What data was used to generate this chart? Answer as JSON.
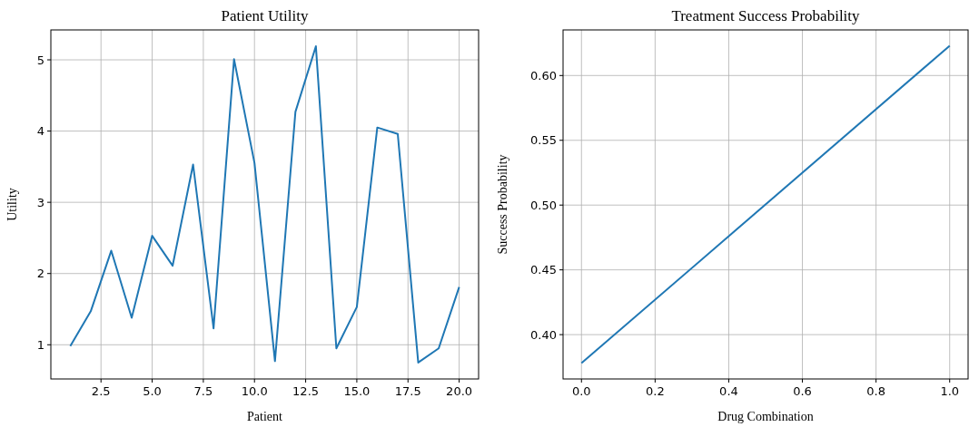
{
  "chart_data": [
    {
      "type": "line",
      "title": "Patient Utility",
      "xlabel": "Patient",
      "ylabel": "Utility",
      "x": [
        1,
        2,
        3,
        4,
        5,
        6,
        7,
        8,
        9,
        10,
        11,
        12,
        13,
        14,
        15,
        16,
        17,
        18,
        19,
        20
      ],
      "series": [
        {
          "color": "#1f77b4",
          "values": [
            0.98,
            1.47,
            2.32,
            1.38,
            2.53,
            2.11,
            3.53,
            1.23,
            5.01,
            3.55,
            0.77,
            4.27,
            5.19,
            0.95,
            1.53,
            4.05,
            3.96,
            0.75,
            0.95,
            1.81
          ]
        }
      ],
      "xlim": [
        0.05,
        20.95
      ],
      "xticks": [
        {
          "value": 2.5,
          "label": "2.5"
        },
        {
          "value": 5,
          "label": "5.0"
        },
        {
          "value": 7.5,
          "label": "7.5"
        },
        {
          "value": 10,
          "label": "10.0"
        },
        {
          "value": 12.5,
          "label": "12.5"
        },
        {
          "value": 15,
          "label": "15.0"
        },
        {
          "value": 17.5,
          "label": "17.5"
        },
        {
          "value": 20,
          "label": "20.0"
        }
      ],
      "ylim": [
        0.52,
        5.42
      ],
      "yticks": [
        1,
        2,
        3,
        4,
        5
      ],
      "grid": true
    },
    {
      "type": "line",
      "title": "Treatment Success Probability",
      "xlabel": "Drug Combination",
      "ylabel": "Success Probability",
      "x": [
        0,
        1
      ],
      "series": [
        {
          "color": "#1f77b4",
          "values": [
            0.378,
            0.623
          ]
        }
      ],
      "xlim": [
        -0.05,
        1.05
      ],
      "xticks": [
        {
          "value": 0,
          "label": "0.0"
        },
        {
          "value": 0.2,
          "label": "0.2"
        },
        {
          "value": 0.4,
          "label": "0.4"
        },
        {
          "value": 0.6,
          "label": "0.6"
        },
        {
          "value": 0.8,
          "label": "0.8"
        },
        {
          "value": 1,
          "label": "1.0"
        }
      ],
      "ylim": [
        0.3658,
        0.6352
      ],
      "yticks": [
        {
          "value": 0.4,
          "label": "0.40"
        },
        {
          "value": 0.45,
          "label": "0.45"
        },
        {
          "value": 0.5,
          "label": "0.50"
        },
        {
          "value": 0.55,
          "label": "0.55"
        },
        {
          "value": 0.6,
          "label": "0.60"
        }
      ],
      "grid": true
    }
  ]
}
